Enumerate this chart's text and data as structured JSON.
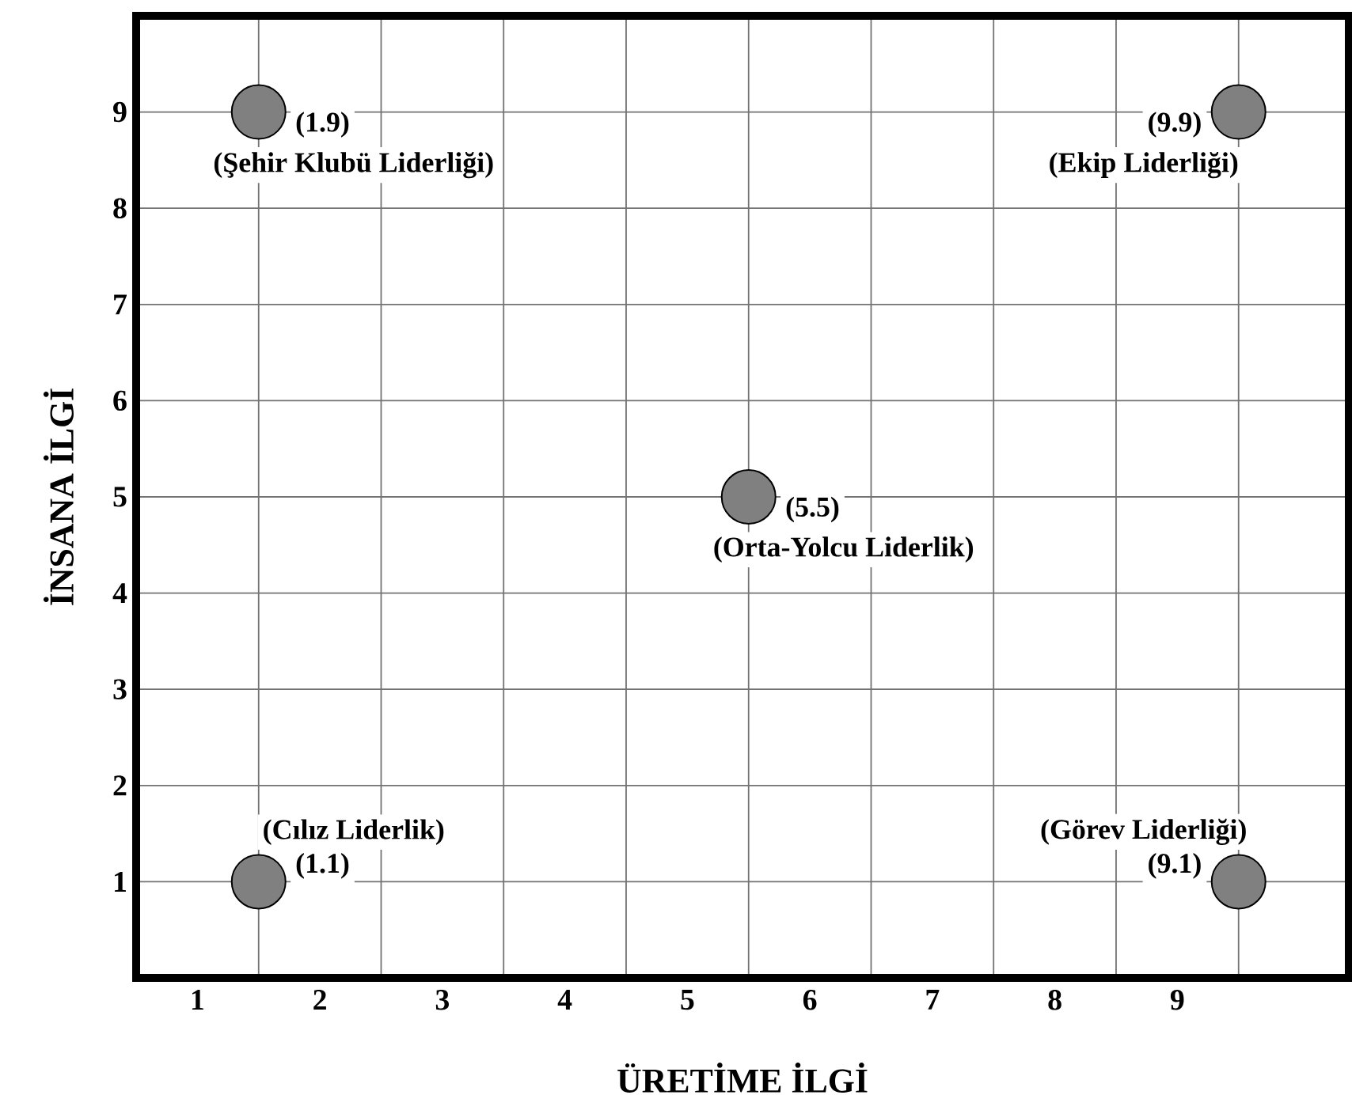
{
  "chart_data": {
    "type": "scatter",
    "xlabel": "ÜRETİME İLGİ",
    "ylabel": "İNSANA İLGİ",
    "x": [
      1.5,
      9.5,
      5.5,
      1.5,
      9.5
    ],
    "series": [
      {
        "color": "#808080",
        "values": [
          9,
          9,
          5,
          1,
          1
        ]
      }
    ],
    "marker": "circle",
    "grid": true,
    "xlim": [
      0.5,
      10.4
    ],
    "ylim": [
      0,
      10
    ],
    "xticks": [
      1,
      2,
      3,
      4,
      5,
      6,
      7,
      8,
      9,
      {
        "value": 1.5,
        "label": null
      },
      {
        "value": 2.5,
        "label": null
      },
      {
        "value": 3.5,
        "label": null
      },
      {
        "value": 4.5,
        "label": null
      },
      {
        "value": 5.5,
        "label": null
      },
      {
        "value": 6.5,
        "label": null
      },
      {
        "value": 7.5,
        "label": null
      },
      {
        "value": 8.5,
        "label": null
      },
      {
        "value": 9.5,
        "label": null
      }
    ],
    "yticks": [
      1,
      2,
      3,
      4,
      5,
      6,
      7,
      8,
      9
    ],
    "annotations": [
      {
        "text": "(1.9)",
        "x": 1.5,
        "y": 9
      },
      {
        "text": "(Şehir Klubü Liderliği)",
        "x": 1.5,
        "y": 9
      },
      {
        "text": "(9.9)",
        "x": 9.5,
        "y": 9
      },
      {
        "text": "(Ekip Liderliği)",
        "x": 9.5,
        "y": 9
      },
      {
        "text": "(5.5)",
        "x": 5.5,
        "y": 5
      },
      {
        "text": "(Orta-Yolcu Liderlik)",
        "x": 5.5,
        "y": 5
      },
      {
        "text": "(1.1)",
        "x": 1.5,
        "y": 1
      },
      {
        "text": "(Cılız Liderlik)",
        "x": 1.5,
        "y": 1
      },
      {
        "text": "(9.1)",
        "x": 9.5,
        "y": 1
      },
      {
        "text": "(Görev Liderliği)",
        "x": 9.5,
        "y": 1
      }
    ]
  }
}
